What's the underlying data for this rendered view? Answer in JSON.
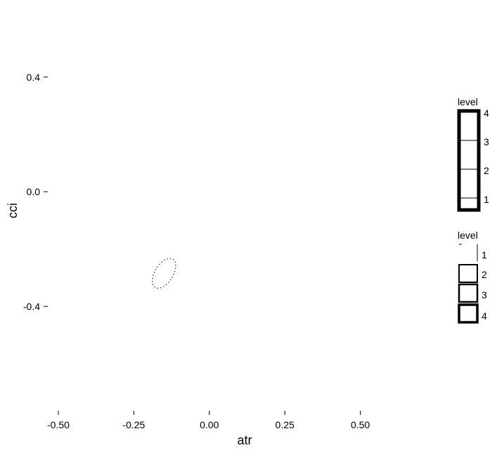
{
  "chart_data": {
    "type": "contour",
    "title": "",
    "xlabel": "atr",
    "ylabel": "cci",
    "xlim": [
      -0.6,
      0.75
    ],
    "ylim": [
      -0.74,
      0.62
    ],
    "x_ticks": [
      -0.5,
      -0.25,
      0.0,
      0.25,
      0.5
    ],
    "x_tick_labels": [
      "-0.50",
      "-0.25",
      "0.00",
      "0.25",
      "0.50"
    ],
    "y_ticks": [
      0.4,
      0.0,
      -0.4
    ],
    "y_tick_labels": [
      "0.4",
      "0.0",
      "-0.4"
    ],
    "grid": false,
    "contours": [
      {
        "level": 1,
        "center": [
          -0.15,
          -0.285
        ],
        "semi_major": 0.055,
        "semi_minor": 0.03,
        "angle_deg": 58,
        "line_style": "dotted"
      }
    ],
    "legends": [
      {
        "title": "level",
        "kind": "colorbar",
        "position": "right-top",
        "labels": [
          "4",
          "3",
          "2",
          "1"
        ]
      },
      {
        "title": "level",
        "kind": "linewidth",
        "position": "right-middle",
        "labels": [
          "1",
          "2",
          "3",
          "4"
        ]
      }
    ]
  }
}
